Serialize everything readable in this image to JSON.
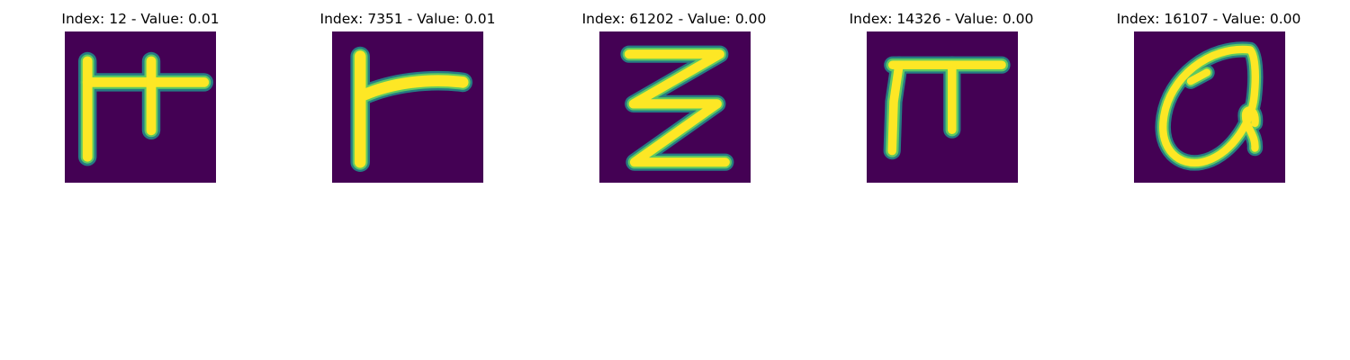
{
  "figure": {
    "colormap": "viridis",
    "colors": {
      "background": "#ffffff",
      "low": "#440154",
      "mid": "#21918c",
      "high": "#fde725",
      "title_text": "#000000"
    },
    "panels": [
      {
        "title": "Index: 12 - Value: 0.01",
        "index": 12,
        "value": 0.01,
        "glyph": "glyph-12"
      },
      {
        "title": "Index: 7351 - Value: 0.01",
        "index": 7351,
        "value": 0.01,
        "glyph": "glyph-7351"
      },
      {
        "title": "Index: 61202 - Value: 0.00",
        "index": 61202,
        "value": 0.0,
        "glyph": "glyph-61202"
      },
      {
        "title": "Index: 14326 - Value: 0.00",
        "index": 14326,
        "value": 0.0,
        "glyph": "glyph-14326"
      },
      {
        "title": "Index: 16107 - Value: 0.00",
        "index": 16107,
        "value": 0.0,
        "glyph": "glyph-16107"
      }
    ]
  }
}
